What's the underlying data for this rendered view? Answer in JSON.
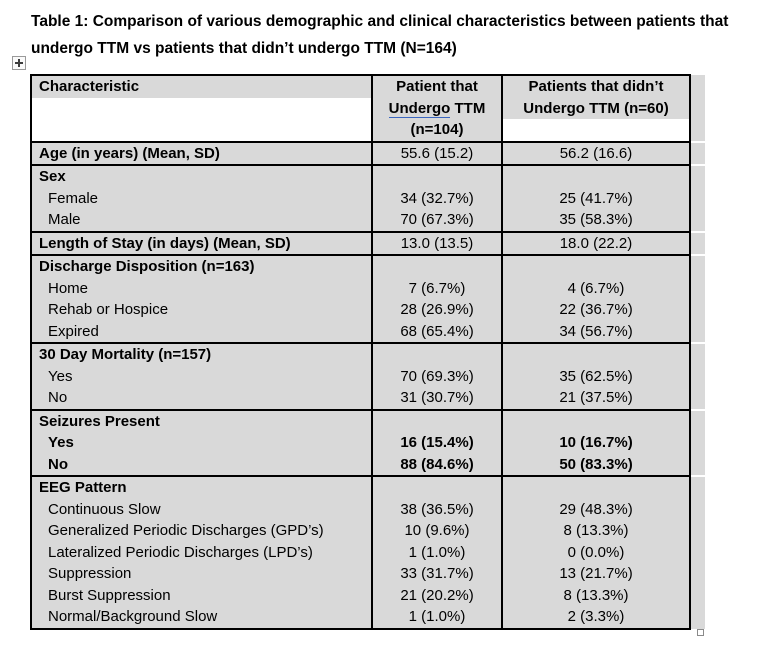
{
  "title": {
    "lines": [
      "Table 1: Comparison of various demographic and clinical characteristics between patients that",
      "undergo TTM vs patients that didn’t undergo TTM (N=164)"
    ]
  },
  "colors": {
    "row_shade": "#d9d9d9",
    "table_border": "#000000",
    "grammar_underline": "#3a66c0",
    "handle_border": "#9a9a9a"
  },
  "icons": {
    "move_handle": "four-direction-move-cross",
    "resize_handle": "table-resize-square"
  },
  "table": {
    "header": {
      "col1": "Characteristic",
      "col2_lines": [
        "Patient that",
        "Undergo TTM",
        "(n=104)"
      ],
      "col2_grammar_check": {
        "line_index": 1,
        "word": "Undergo"
      },
      "col3_lines": [
        "Patients that didn’t",
        "Undergo TTM (n=60)"
      ]
    },
    "rows": [
      {
        "lines": [
          {
            "label": "Age (in years) (Mean, SD)",
            "bold": true,
            "ttm": "55.6 (15.2)",
            "no_ttm": "56.2 (16.6)"
          }
        ]
      },
      {
        "lines": [
          {
            "label": "Sex",
            "bold": true,
            "ttm": "",
            "no_ttm": ""
          },
          {
            "label": "Female",
            "indent": true,
            "ttm": "34 (32.7%)",
            "no_ttm": "25 (41.7%)"
          },
          {
            "label": "Male",
            "indent": true,
            "ttm": "70 (67.3%)",
            "no_ttm": "35 (58.3%)"
          }
        ]
      },
      {
        "lines": [
          {
            "label": "Length of Stay (in days) (Mean, SD)",
            "bold": true,
            "ttm": "13.0 (13.5)",
            "no_ttm": "18.0 (22.2)"
          }
        ]
      },
      {
        "lines": [
          {
            "label": "Discharge Disposition (n=163)",
            "bold": true,
            "ttm": "",
            "no_ttm": ""
          },
          {
            "label": "Home",
            "indent": true,
            "ttm": "7 (6.7%)",
            "no_ttm": "4 (6.7%)"
          },
          {
            "label": "Rehab or Hospice",
            "indent": true,
            "ttm": "28 (26.9%)",
            "no_ttm": "22 (36.7%)"
          },
          {
            "label": "Expired",
            "indent": true,
            "ttm": "68 (65.4%)",
            "no_ttm": "34 (56.7%)"
          }
        ]
      },
      {
        "lines": [
          {
            "label": "30 Day Mortality (n=157)",
            "bold": true,
            "ttm": "",
            "no_ttm": ""
          },
          {
            "label": "Yes",
            "indent": true,
            "ttm": "70 (69.3%)",
            "no_ttm": "35 (62.5%)"
          },
          {
            "label": "No",
            "indent": true,
            "ttm": "31 (30.7%)",
            "no_ttm": "21 (37.5%)"
          }
        ]
      },
      {
        "lines": [
          {
            "label": "Seizures Present",
            "bold": true,
            "ttm": "",
            "no_ttm": ""
          },
          {
            "label": "Yes",
            "bold": true,
            "indent": true,
            "ttm": "16 (15.4%)",
            "no_ttm": "10 (16.7%)"
          },
          {
            "label": "No",
            "bold": true,
            "indent": true,
            "ttm": "88 (84.6%)",
            "no_ttm": "50 (83.3%)"
          }
        ]
      },
      {
        "lines": [
          {
            "label": "EEG Pattern",
            "bold": true,
            "ttm": "",
            "no_ttm": ""
          },
          {
            "label": "Continuous Slow",
            "indent": true,
            "ttm": "38 (36.5%)",
            "no_ttm": "29 (48.3%)"
          },
          {
            "label": "Generalized Periodic Discharges (GPD’s)",
            "indent": true,
            "ttm": "10 (9.6%)",
            "no_ttm": "8 (13.3%)"
          },
          {
            "label": "Lateralized Periodic Discharges (LPD’s)",
            "indent": true,
            "ttm": "1 (1.0%)",
            "no_ttm": "0 (0.0%)"
          },
          {
            "label": "Suppression",
            "indent": true,
            "ttm": "33 (31.7%)",
            "no_ttm": "13 (21.7%)"
          },
          {
            "label": "Burst Suppression",
            "indent": true,
            "ttm": "21 (20.2%)",
            "no_ttm": "8 (13.3%)"
          },
          {
            "label": "Normal/Background Slow",
            "indent": true,
            "ttm": "1 (1.0%)",
            "no_ttm": "2 (3.3%)"
          }
        ]
      }
    ]
  }
}
